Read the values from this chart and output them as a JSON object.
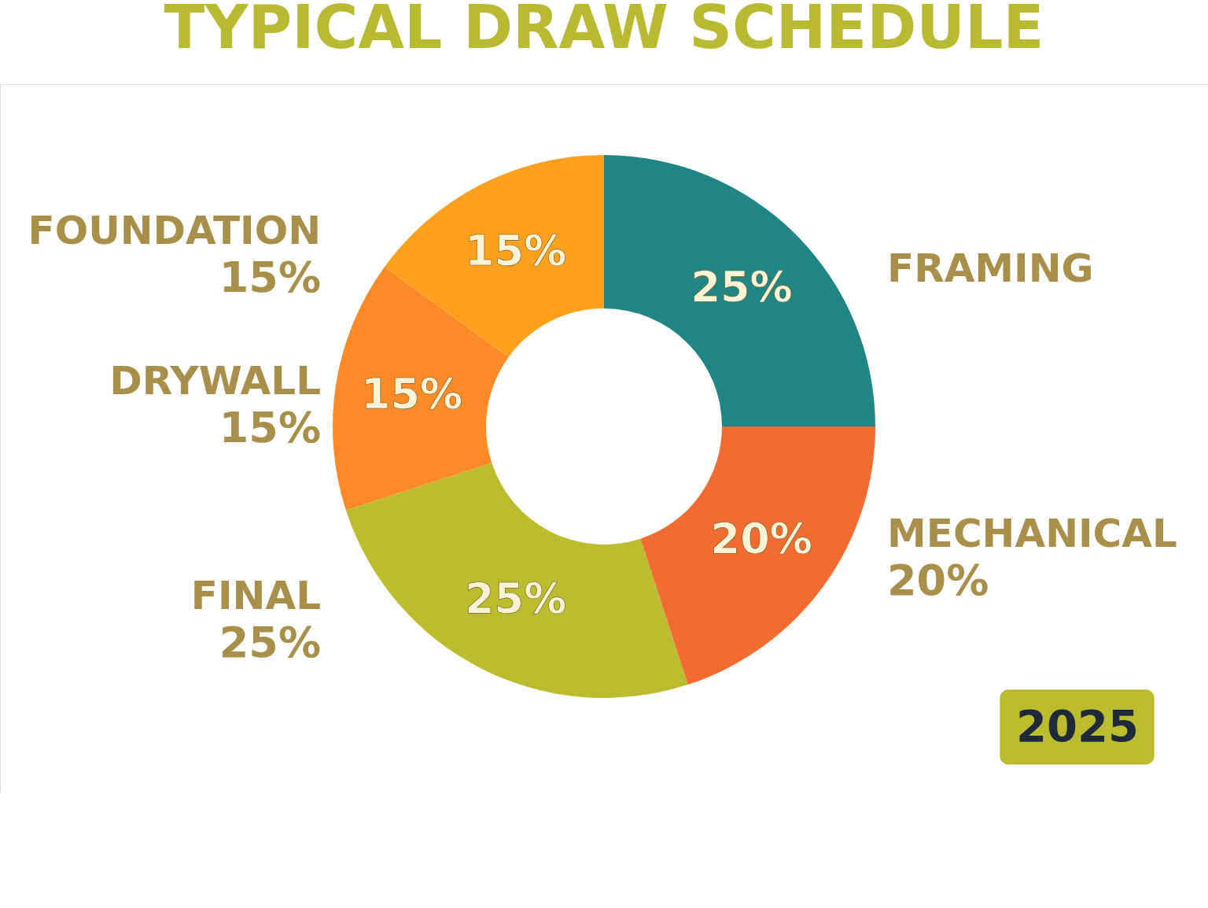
{
  "chart_data": {
    "type": "donut",
    "title": "TYPICAL DRAW SCHEDULE",
    "categories": [
      "FRAMING",
      "MECHANICAL",
      "FINAL",
      "DRYWALL",
      "FOUNDATION"
    ],
    "values": [
      25,
      20,
      25,
      15,
      15
    ],
    "colors": [
      "#1f8585",
      "#f26b30",
      "#bcbd2e",
      "#fc8a27",
      "#fca01e"
    ],
    "value_labels": [
      "25%",
      "20%",
      "25%",
      "15%",
      "15%"
    ],
    "legend": false,
    "annotations": [
      "2025",
      {
        "text": "20%",
        "x": "MECHANICAL"
      },
      {
        "text": "25%",
        "x": "FINAL"
      },
      {
        "text": "15%",
        "x": "DRYWALL"
      },
      {
        "text": "15%",
        "x": "FOUNDATION"
      }
    ]
  }
}
